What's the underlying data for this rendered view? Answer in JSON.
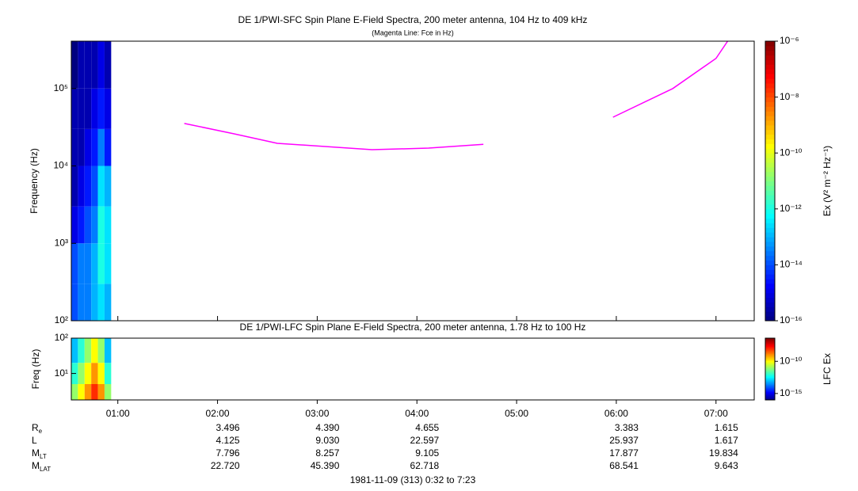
{
  "chart_data": [
    {
      "type": "heatmap",
      "title": "DE 1/PWI-SFC  Spin Plane E-Field Spectra, 200 meter antenna, 104 Hz to 409 kHz",
      "subtitle": "(Magenta Line: Fce in Hz)",
      "y_label": "Frequency (Hz)",
      "colorbar_label": "Ex (V² m⁻² Hz⁻¹)",
      "colormap": "jet",
      "ylog": true,
      "xlim": [
        32,
        443
      ],
      "xticks": [
        {
          "value": 60,
          "label": "01:00"
        },
        {
          "value": 120,
          "label": "02:00"
        },
        {
          "value": 180,
          "label": "03:00"
        },
        {
          "value": 240,
          "label": "04:00"
        },
        {
          "value": 300,
          "label": "05:00"
        },
        {
          "value": 360,
          "label": "06:00"
        },
        {
          "value": 420,
          "label": "07:00"
        }
      ],
      "ylim": [
        100,
        409000
      ],
      "yticks": [
        {
          "value": 100,
          "label": "10²"
        },
        {
          "value": 1000,
          "label": "10³"
        },
        {
          "value": 10000,
          "label": "10⁴"
        },
        {
          "value": 100000,
          "label": "10⁵"
        }
      ],
      "zlim": [
        1e-16,
        1e-06
      ],
      "zticks": [
        {
          "value": 1e-16,
          "label": "10⁻¹⁶"
        },
        {
          "value": 1e-14,
          "label": "10⁻¹⁴"
        },
        {
          "value": 1e-12,
          "label": "10⁻¹²"
        },
        {
          "value": 1e-10,
          "label": "10⁻¹⁰"
        },
        {
          "value": 1e-08,
          "label": "10⁻⁸"
        },
        {
          "value": 1e-06,
          "label": "10⁻⁶"
        }
      ],
      "x_bins": [
        32,
        36,
        40,
        44,
        48,
        52,
        56
      ],
      "y_bins": [
        100,
        300,
        1000,
        3000,
        10000,
        30000,
        100000,
        409000
      ],
      "z": [
        [
          1e-14,
          3e-14,
          3e-14,
          1e-13,
          3e-13,
          1e-13
        ],
        [
          1e-14,
          3e-14,
          3e-14,
          1e-13,
          1e-12,
          3e-13
        ],
        [
          1e-15,
          3e-15,
          1e-14,
          3e-14,
          1e-12,
          3e-13
        ],
        [
          3e-16,
          1e-15,
          3e-15,
          1e-14,
          3e-13,
          1e-13
        ],
        [
          3e-16,
          3e-16,
          1e-15,
          3e-15,
          3e-14,
          3e-15
        ],
        [
          3e-16,
          3e-16,
          3e-16,
          1e-15,
          3e-15,
          1e-15
        ],
        [
          1e-16,
          3e-16,
          3e-16,
          3e-16,
          1e-15,
          3e-16
        ]
      ],
      "overlay": {
        "color": "#ff00ff",
        "x": [
          100,
          130,
          156,
          213,
          247,
          280,
          320,
          358,
          394,
          420,
          427
        ],
        "y": [
          35400,
          26000,
          19600,
          16200,
          17000,
          19000,
          null,
          42600,
          100000,
          245000,
          409000
        ]
      }
    },
    {
      "type": "heatmap",
      "title": "DE 1/PWI-LFC  Spin Plane E-Field Spectra, 200 meter antenna, 1.78 Hz to 100 Hz",
      "y_label": "Freq (Hz)",
      "colorbar_label": "LFC Ex",
      "colormap": "jet",
      "ylog": true,
      "xlim": [
        32,
        443
      ],
      "ylim": [
        1.78,
        100
      ],
      "yticks": [
        {
          "value": 10,
          "label": "10¹"
        },
        {
          "value": 100,
          "label": "10²"
        }
      ],
      "zlim": [
        1e-16,
        4e-07
      ],
      "zticks": [
        {
          "value": 1e-15,
          "label": "10⁻¹⁵"
        },
        {
          "value": 1e-10,
          "label": "10⁻¹⁰"
        }
      ],
      "x_bins": [
        32,
        36,
        40,
        44,
        48,
        52,
        56
      ],
      "y_bins": [
        1.78,
        5,
        20,
        100
      ],
      "z": [
        [
          1e-11,
          1e-10,
          1e-09,
          1e-08,
          1e-09,
          1e-11
        ],
        [
          1e-12,
          1e-11,
          1e-10,
          1e-09,
          1e-10,
          1e-12
        ],
        [
          1e-13,
          1e-12,
          1e-11,
          1e-10,
          1e-11,
          1e-13
        ]
      ]
    }
  ],
  "ephemeris": {
    "rows": [
      {
        "name": "R",
        "sub": "e",
        "values": [
          "3.496",
          "4.390",
          "4.655",
          "3.383",
          "1.615"
        ]
      },
      {
        "name": "L",
        "values": [
          "4.125",
          "9.030",
          "22.597",
          "25.937",
          "1.617"
        ]
      },
      {
        "name": "M",
        "sub": "LT",
        "values": [
          "7.796",
          "8.257",
          "9.105",
          "17.877",
          "19.834"
        ]
      },
      {
        "name": "M",
        "sub": "LAT",
        "values": [
          "22.720",
          "45.390",
          "62.718",
          "68.541",
          "9.643"
        ]
      }
    ]
  },
  "footer": "1981-11-09 (313) 0:32 to 7:23"
}
